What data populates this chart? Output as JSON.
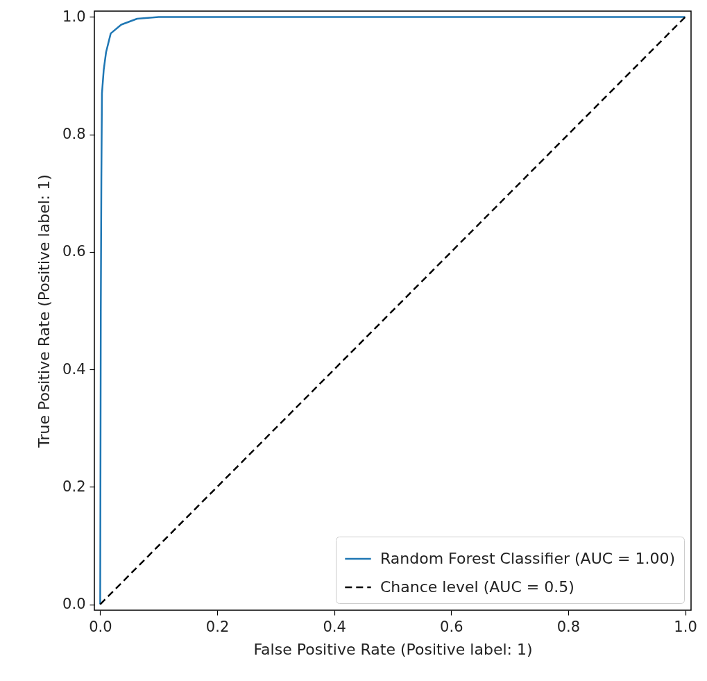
{
  "chart_data": {
    "type": "line",
    "xlabel": "False Positive Rate (Positive label: 1)",
    "ylabel": "True Positive Rate (Positive label: 1)",
    "xlim": [
      -0.01,
      1.01
    ],
    "ylim": [
      -0.01,
      1.01
    ],
    "xticks": [
      {
        "value": 0,
        "label": "0.0"
      },
      0.2,
      0.4,
      0.6,
      0.8,
      {
        "value": 1,
        "label": "1.0"
      }
    ],
    "yticks": [
      {
        "value": 0,
        "label": "0.0"
      },
      0.2,
      0.4,
      0.6,
      0.8,
      {
        "value": 1,
        "label": "1.0"
      }
    ],
    "legend": "bottom right",
    "series": [
      {
        "name": "Random Forest Classifier (AUC = 1.00)",
        "type": "line",
        "color": "#1f77b4",
        "line_style": "solid",
        "x": [
          0,
          0.001,
          0.002,
          0.003,
          0.006,
          0.01,
          0.018,
          0.036,
          0.063,
          0.1,
          1
        ],
        "values": [
          0,
          0.5,
          0.73,
          0.87,
          0.91,
          0.94,
          0.972,
          0.987,
          0.997,
          1,
          1
        ]
      },
      {
        "name": "Chance level (AUC = 0.5)",
        "type": "line",
        "color": "#000000",
        "line_style": "dashed",
        "x": [
          0,
          1
        ],
        "values": [
          0,
          1
        ]
      }
    ]
  }
}
